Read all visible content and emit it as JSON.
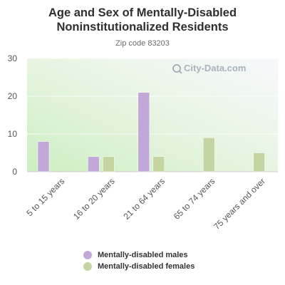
{
  "title_line1": "Age and Sex of Mentally-Disabled",
  "title_line2": "Noninstitutionalized Residents",
  "subtitle": "Zip code 83203",
  "watermark": "City-Data.com",
  "colors": {
    "males": "#c2a8d8",
    "females": "#c4d5a2"
  },
  "chart_data": {
    "type": "bar",
    "categories": [
      "5 to 15 years",
      "16 to 20 years",
      "21 to 64 years",
      "65 to 74 years",
      "75 years and over"
    ],
    "series": [
      {
        "name": "Mentally-disabled males",
        "values": [
          8,
          4,
          21,
          0,
          0
        ]
      },
      {
        "name": "Mentally-disabled females",
        "values": [
          0,
          4,
          4,
          9,
          5
        ]
      }
    ],
    "ylim": [
      0,
      30
    ],
    "yticks": [
      0,
      10,
      20,
      30
    ],
    "grid": true,
    "legend_position": "bottom"
  }
}
